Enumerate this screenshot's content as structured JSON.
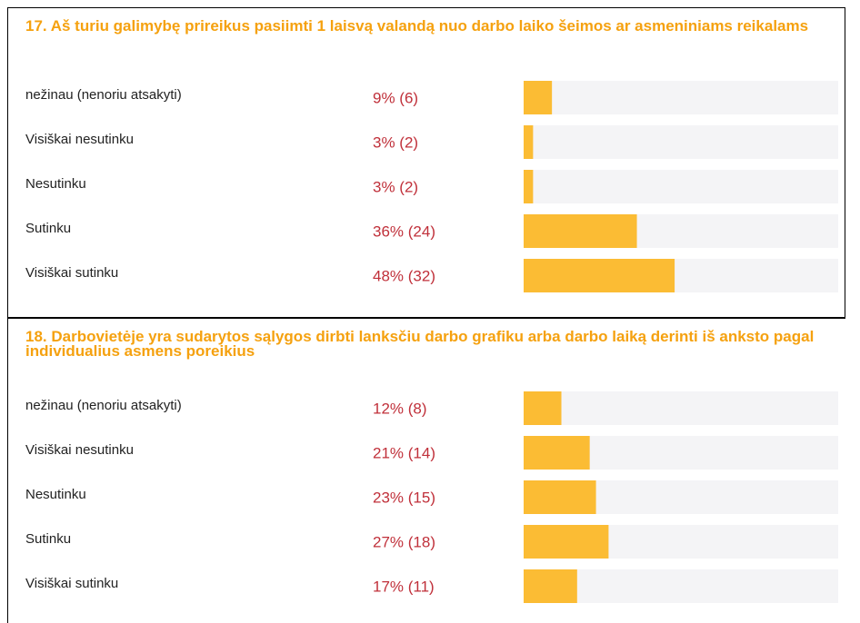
{
  "chart_data": [
    {
      "type": "bar",
      "orientation": "horizontal",
      "title": "17. Aš turiu galimybę prireikus pasiimti 1 laisvą valandą nuo darbo laiko šeimos ar asmeniniams reikalams",
      "categories": [
        "nežinau (nenoriu atsakyti)",
        "Visiškai nesutinku",
        "Nesutinku",
        "Sutinku",
        "Visiškai sutinku"
      ],
      "values": [
        9,
        3,
        3,
        36,
        48
      ],
      "value_labels": [
        "9% (6)",
        "3% (2)",
        "3% (2)",
        "36% (24)",
        "48% (32)"
      ],
      "color": "#fbbc34",
      "xlim": [
        0,
        100
      ]
    },
    {
      "type": "bar",
      "orientation": "horizontal",
      "title": "18. Darbovietėje yra sudarytos sąlygos dirbti lanksčiu darbo grafiku arba darbo laiką derinti iš anksto pagal individualius asmens poreikius",
      "categories": [
        "nežinau (nenoriu atsakyti)",
        "Visiškai nesutinku",
        "Nesutinku",
        "Sutinku",
        "Visiškai sutinku"
      ],
      "values": [
        12,
        21,
        23,
        27,
        17
      ],
      "value_labels": [
        "12% (8)",
        "21% (14)",
        "23% (15)",
        "27% (18)",
        "17% (11)"
      ],
      "color": "#fbbc34",
      "xlim": [
        0,
        100
      ]
    }
  ]
}
